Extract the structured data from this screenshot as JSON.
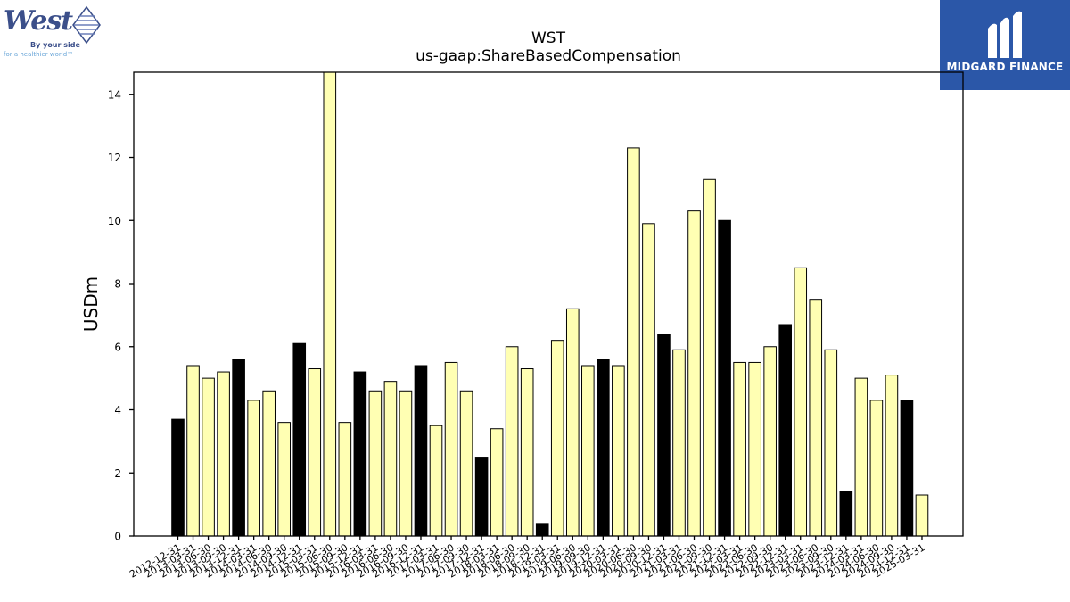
{
  "logos": {
    "left": {
      "word": "West",
      "tagline1": "By your side",
      "tagline2": "for a healthier world™"
    },
    "right": {
      "brand": "MIDGARD FINANCE"
    }
  },
  "colors": {
    "highlight_bar": "#000000",
    "normal_bar": "#ffffb3",
    "bar_edge": "#000000",
    "logo_bg": "#2b57a8"
  },
  "chart_data": {
    "type": "bar",
    "title": "WST",
    "subtitle": "us-gaap:ShareBasedCompensation",
    "xlabel": "",
    "ylabel": "USDm",
    "ylim": [
      0,
      14.7
    ],
    "yticks": [
      0,
      2,
      4,
      6,
      8,
      10,
      12,
      14
    ],
    "grid": false,
    "categories": [
      "2012-12-31",
      "2013-03-31",
      "2013-06-30",
      "2013-09-30",
      "2013-12-31",
      "2014-03-31",
      "2014-06-30",
      "2014-09-30",
      "2014-12-31",
      "2015-03-31",
      "2015-06-30",
      "2015-09-30",
      "2015-12-31",
      "2016-03-31",
      "2016-06-30",
      "2016-09-30",
      "2016-12-31",
      "2017-03-31",
      "2017-06-30",
      "2017-09-30",
      "2017-12-31",
      "2018-03-31",
      "2018-06-30",
      "2018-09-30",
      "2018-12-31",
      "2019-03-31",
      "2019-06-30",
      "2019-09-30",
      "2019-12-31",
      "2020-03-31",
      "2020-06-30",
      "2020-09-30",
      "2020-12-31",
      "2021-03-31",
      "2021-06-30",
      "2021-09-30",
      "2021-12-31",
      "2022-03-31",
      "2022-06-30",
      "2022-09-30",
      "2022-12-31",
      "2023-03-31",
      "2023-06-30",
      "2023-09-30",
      "2023-12-31",
      "2024-03-31",
      "2024-06-30",
      "2024-09-30",
      "2024-12-31",
      "2025-03-31"
    ],
    "values": [
      3.7,
      5.4,
      5.0,
      5.2,
      5.6,
      4.3,
      4.6,
      3.6,
      6.1,
      5.3,
      14.7,
      3.6,
      5.2,
      4.6,
      4.9,
      4.6,
      5.4,
      3.5,
      5.5,
      4.6,
      2.5,
      3.4,
      6.0,
      5.3,
      0.4,
      6.2,
      7.2,
      5.4,
      5.6,
      5.4,
      12.3,
      9.9,
      6.4,
      5.9,
      10.3,
      11.3,
      10.0,
      5.5,
      5.5,
      6.0,
      6.7,
      8.5,
      7.5,
      5.9,
      1.4,
      5.0,
      4.3,
      5.1,
      4.3,
      1.3
    ],
    "highlighted": [
      true,
      false,
      false,
      false,
      true,
      false,
      false,
      false,
      true,
      false,
      false,
      false,
      true,
      false,
      false,
      false,
      true,
      false,
      false,
      false,
      true,
      false,
      false,
      false,
      true,
      false,
      false,
      false,
      true,
      false,
      false,
      false,
      true,
      false,
      false,
      false,
      true,
      false,
      false,
      false,
      true,
      false,
      false,
      false,
      true,
      false,
      false,
      false,
      true,
      false
    ]
  }
}
